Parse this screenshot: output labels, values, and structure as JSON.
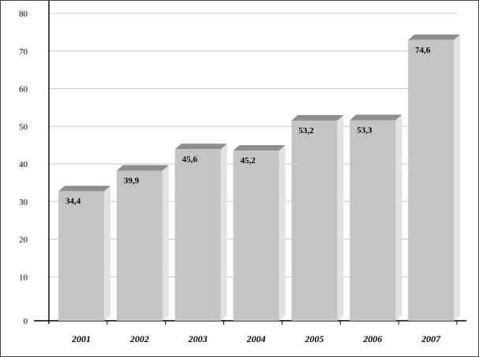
{
  "chart_data": {
    "type": "bar",
    "categories": [
      "2001",
      "2002",
      "2003",
      "2004",
      "2005",
      "2006",
      "2007"
    ],
    "values": [
      34.4,
      39.9,
      45.6,
      45.2,
      53.2,
      53.3,
      74.6
    ],
    "value_labels": [
      "34,4",
      "39,9",
      "45,6",
      "45,2",
      "53,2",
      "53,3",
      "74,6"
    ],
    "ylim": [
      0,
      80
    ],
    "yticks": [
      0,
      10,
      20,
      30,
      40,
      50,
      60,
      70,
      80
    ],
    "grid": true,
    "legend": "none",
    "style": "3d-bars",
    "colors": {
      "bar_front": "#c4c4c4",
      "bar_top": "#8e8e8e",
      "bar_side": "#e2e2e2",
      "gridline": "#c8c8c8",
      "axis": "#000000"
    }
  }
}
